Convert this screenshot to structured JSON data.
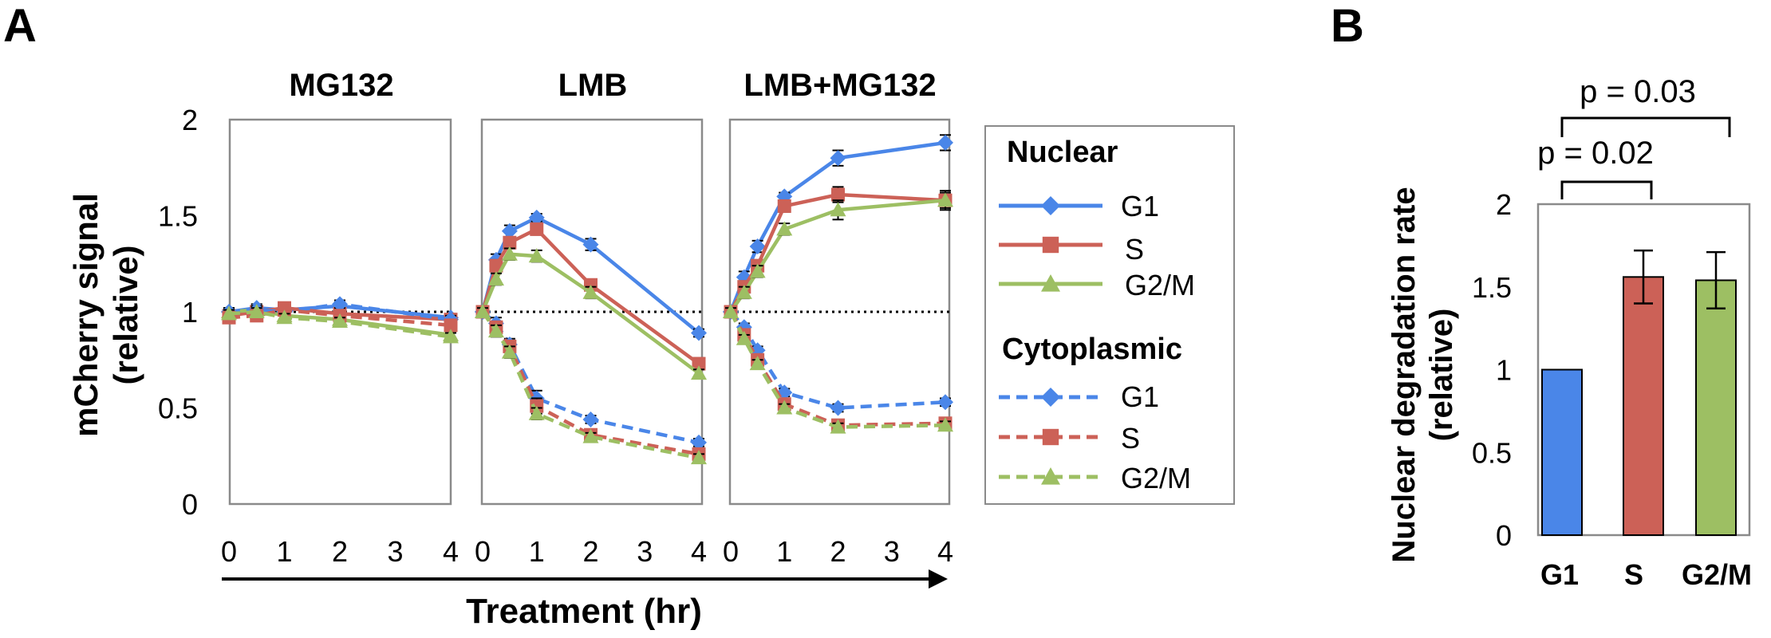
{
  "panel_a_label": "A",
  "panel_b_label": "B",
  "colors": {
    "G1": "#4a86e8",
    "S": "#cc6157",
    "G2/M": "#9dbf63",
    "frame": "#8a8a8a"
  },
  "chart_data": [
    {
      "type": "line",
      "panel": "A",
      "ylabel_line1": "mCherry  signal",
      "ylabel_line2": "(relative)",
      "xlabel": "Treatment (hr)",
      "ylim": [
        0,
        2
      ],
      "yticks": [
        "0",
        "0.5",
        "1",
        "1.5",
        "2"
      ],
      "xticks": [
        "0",
        "1",
        "2",
        "3",
        "4"
      ],
      "xlim": [
        0,
        4
      ],
      "reference_line": 1,
      "legend": {
        "nuclear_title": "Nuclear",
        "cytoplasmic_title": "Cytoplasmic",
        "nuclear_entries": [
          "G1",
          "S",
          "G2/M"
        ],
        "cytoplasmic_entries": [
          "G1",
          "S",
          "G2/M"
        ]
      },
      "subplots": [
        {
          "title": "MG132",
          "x": [
            0,
            0.5,
            1,
            2,
            4
          ],
          "series": [
            {
              "name": "G1",
              "compartment": "Nuclear",
              "marker": "diamond",
              "values": [
                1.0,
                1.02,
                1.01,
                1.03,
                0.97
              ],
              "err": [
                0.02,
                0.02,
                0.02,
                0.02,
                0.02
              ]
            },
            {
              "name": "S",
              "compartment": "Nuclear",
              "marker": "square",
              "values": [
                0.98,
                1.0,
                1.02,
                0.99,
                0.96
              ],
              "err": [
                0.02,
                0.02,
                0.02,
                0.02,
                0.02
              ]
            },
            {
              "name": "G2/M",
              "compartment": "Nuclear",
              "marker": "triangle",
              "values": [
                1.0,
                1.01,
                0.98,
                0.96,
                0.88
              ],
              "err": [
                0.02,
                0.02,
                0.02,
                0.02,
                0.02
              ]
            },
            {
              "name": "G1",
              "compartment": "Cytoplasmic",
              "marker": "diamond",
              "values": [
                1.0,
                1.01,
                1.0,
                1.04,
                0.96
              ],
              "err": [
                0.02,
                0.02,
                0.02,
                0.02,
                0.02
              ]
            },
            {
              "name": "S",
              "compartment": "Cytoplasmic",
              "marker": "square",
              "values": [
                0.97,
                0.98,
                1.01,
                0.98,
                0.93
              ],
              "err": [
                0.02,
                0.02,
                0.02,
                0.02,
                0.02
              ]
            },
            {
              "name": "G2/M",
              "compartment": "Cytoplasmic",
              "marker": "triangle",
              "values": [
                0.99,
                1.0,
                0.97,
                0.95,
                0.87
              ],
              "err": [
                0.02,
                0.02,
                0.02,
                0.02,
                0.02
              ]
            }
          ]
        },
        {
          "title": "LMB",
          "x": [
            0,
            0.25,
            0.5,
            1,
            2,
            4
          ],
          "series": [
            {
              "name": "G1",
              "compartment": "Nuclear",
              "marker": "diamond",
              "values": [
                1.0,
                1.27,
                1.42,
                1.49,
                1.35,
                0.89
              ],
              "err": [
                0.02,
                0.03,
                0.03,
                0.02,
                0.03,
                0.02
              ]
            },
            {
              "name": "S",
              "compartment": "Nuclear",
              "marker": "square",
              "values": [
                1.0,
                1.24,
                1.36,
                1.43,
                1.14,
                0.73
              ],
              "err": [
                0.02,
                0.03,
                0.03,
                0.03,
                0.03,
                0.03
              ]
            },
            {
              "name": "G2/M",
              "compartment": "Nuclear",
              "marker": "triangle",
              "values": [
                1.0,
                1.17,
                1.3,
                1.29,
                1.1,
                0.68
              ],
              "err": [
                0.02,
                0.03,
                0.03,
                0.03,
                0.03,
                0.02
              ]
            },
            {
              "name": "G1",
              "compartment": "Cytoplasmic",
              "marker": "diamond",
              "values": [
                1.0,
                0.94,
                0.83,
                0.55,
                0.44,
                0.32
              ],
              "err": [
                0.02,
                0.03,
                0.03,
                0.04,
                0.02,
                0.02
              ]
            },
            {
              "name": "S",
              "compartment": "Cytoplasmic",
              "marker": "square",
              "values": [
                1.0,
                0.92,
                0.82,
                0.51,
                0.36,
                0.26
              ],
              "err": [
                0.02,
                0.03,
                0.03,
                0.04,
                0.02,
                0.02
              ]
            },
            {
              "name": "G2/M",
              "compartment": "Cytoplasmic",
              "marker": "triangle",
              "values": [
                1.0,
                0.9,
                0.79,
                0.47,
                0.35,
                0.24
              ],
              "err": [
                0.02,
                0.03,
                0.03,
                0.03,
                0.02,
                0.02
              ]
            }
          ]
        },
        {
          "title": "LMB+MG132",
          "x": [
            0,
            0.25,
            0.5,
            1,
            2,
            4
          ],
          "series": [
            {
              "name": "G1",
              "compartment": "Nuclear",
              "marker": "diamond",
              "values": [
                1.0,
                1.18,
                1.34,
                1.6,
                1.8,
                1.88
              ],
              "err": [
                0.02,
                0.03,
                0.03,
                0.02,
                0.04,
                0.04
              ]
            },
            {
              "name": "S",
              "compartment": "Nuclear",
              "marker": "square",
              "values": [
                1.0,
                1.13,
                1.24,
                1.55,
                1.61,
                1.58
              ],
              "err": [
                0.02,
                0.03,
                0.03,
                0.03,
                0.04,
                0.04
              ]
            },
            {
              "name": "G2/M",
              "compartment": "Nuclear",
              "marker": "triangle",
              "values": [
                1.0,
                1.1,
                1.21,
                1.43,
                1.53,
                1.58
              ],
              "err": [
                0.02,
                0.03,
                0.03,
                0.03,
                0.05,
                0.05
              ]
            },
            {
              "name": "G1",
              "compartment": "Cytoplasmic",
              "marker": "diamond",
              "values": [
                1.0,
                0.92,
                0.8,
                0.58,
                0.5,
                0.53
              ],
              "err": [
                0.02,
                0.02,
                0.02,
                0.02,
                0.02,
                0.02
              ]
            },
            {
              "name": "S",
              "compartment": "Cytoplasmic",
              "marker": "square",
              "values": [
                1.0,
                0.88,
                0.75,
                0.52,
                0.41,
                0.42
              ],
              "err": [
                0.02,
                0.02,
                0.02,
                0.02,
                0.02,
                0.02
              ]
            },
            {
              "name": "G2/M",
              "compartment": "Cytoplasmic",
              "marker": "triangle",
              "values": [
                1.0,
                0.86,
                0.73,
                0.5,
                0.4,
                0.41
              ],
              "err": [
                0.02,
                0.02,
                0.02,
                0.02,
                0.02,
                0.02
              ]
            }
          ]
        }
      ]
    },
    {
      "type": "bar",
      "panel": "B",
      "ylabel_line1": "Nuclear degradation rate",
      "ylabel_line2": "(relative)",
      "categories": [
        "G1",
        "S",
        "G2/M"
      ],
      "values": [
        1.0,
        1.56,
        1.54
      ],
      "err": [
        0,
        0.16,
        0.17
      ],
      "ylim": [
        0,
        2
      ],
      "yticks": [
        "0",
        "0.5",
        "1",
        "1.5",
        "2"
      ],
      "annotations": [
        {
          "from": "G1",
          "to": "S",
          "text": "p = 0.02"
        },
        {
          "from": "G1",
          "to": "G2/M",
          "text": "p = 0.03"
        }
      ]
    }
  ]
}
